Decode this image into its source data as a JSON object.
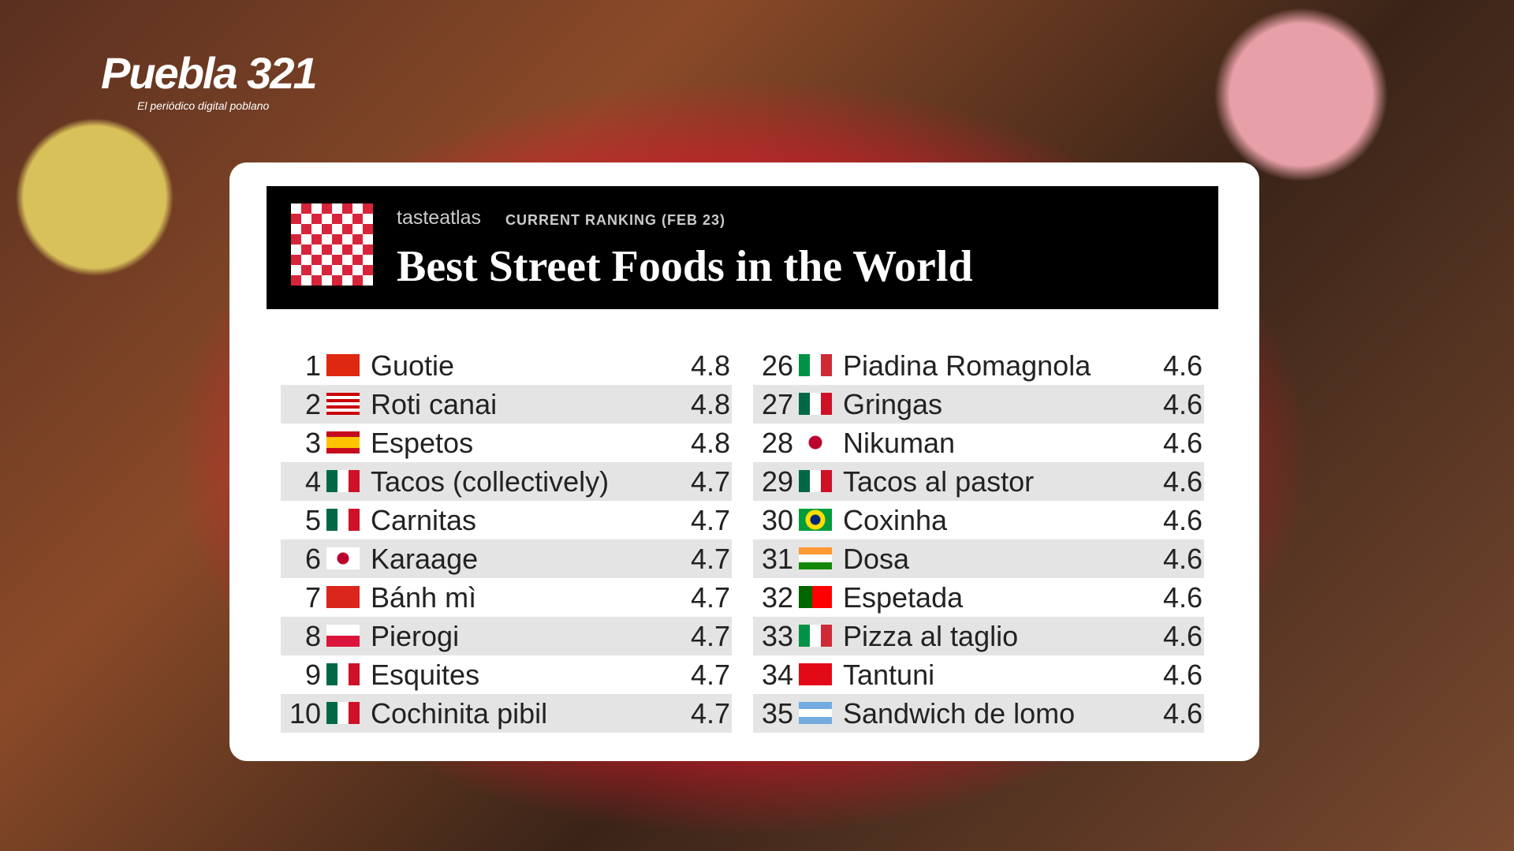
{
  "header": {
    "logo": "Puebla 321",
    "tagline": "El periódico digital poblano"
  },
  "card": {
    "brand": "tasteatlas",
    "ranking": "CURRENT RANKING (FEB 23)",
    "title": "Best Street Foods in the World"
  },
  "table": {
    "left": [
      {
        "rank": 1,
        "name": "Guotie",
        "rating": 4.8
      },
      {
        "rank": 2,
        "name": "Roti canai",
        "rating": 4.8
      },
      {
        "rank": 3,
        "name": "Espetos",
        "rating": 4.8
      },
      {
        "rank": 4,
        "name": "Tacos (collectively)",
        "rating": 4.7
      },
      {
        "rank": 5,
        "name": "Carnitas",
        "rating": 4.7
      },
      {
        "rank": 6,
        "name": "Karaage",
        "rating": 4.7
      },
      {
        "rank": 7,
        "name": "Bánh mì",
        "rating": 4.7
      },
      {
        "rank": 8,
        "name": "Pierogi",
        "rating": 4.7
      },
      {
        "rank": 9,
        "name": "Esquites",
        "rating": 4.7
      },
      {
        "rank": 10,
        "name": "Cochinita pibil",
        "rating": 4.7
      }
    ],
    "right": [
      {
        "rank": 26,
        "name": "Piadina Romagnola",
        "rating": 4.6
      },
      {
        "rank": 27,
        "name": "Gringas",
        "rating": 4.6
      },
      {
        "rank": 28,
        "name": "Nikuman",
        "rating": 4.6
      },
      {
        "rank": 29,
        "name": "Tacos al pastor",
        "rating": 4.6
      },
      {
        "rank": 30,
        "name": "Coxinha",
        "rating": 4.6
      },
      {
        "rank": 31,
        "name": "Dosa",
        "rating": 4.6
      },
      {
        "rank": 32,
        "name": "Espetada",
        "rating": 4.6
      },
      {
        "rank": 33,
        "name": "Pizza al taglio",
        "rating": 4.6
      },
      {
        "rank": 34,
        "name": "Tantuni",
        "rating": 4.6
      },
      {
        "rank": 35,
        "name": "Sandwich de lomo",
        "rating": 4.6
      }
    ]
  }
}
